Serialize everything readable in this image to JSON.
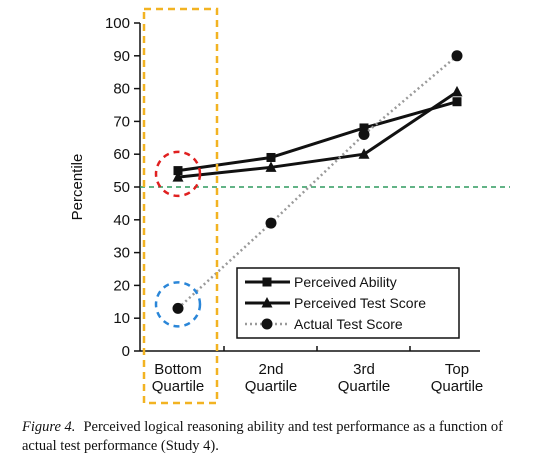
{
  "chart_data": {
    "type": "line",
    "categories": [
      "Bottom Quartile",
      "2nd Quartile",
      "3rd Quartile",
      "Top Quartile"
    ],
    "category_lines": [
      [
        "Bottom",
        "Quartile"
      ],
      [
        "2nd",
        "Quartile"
      ],
      [
        "3rd",
        "Quartile"
      ],
      [
        "Top",
        "Quartile"
      ]
    ],
    "ylabel": "Percentile",
    "ylim": [
      0,
      100
    ],
    "yticks": [
      0,
      10,
      20,
      30,
      40,
      50,
      60,
      70,
      80,
      90,
      100
    ],
    "series": [
      {
        "name": "Perceived Ability",
        "values": [
          55,
          59,
          68,
          76
        ],
        "marker": "square",
        "color": "#111111",
        "dash": "solid"
      },
      {
        "name": "Perceived Test Score",
        "values": [
          53,
          56,
          60,
          79
        ],
        "marker": "triangle",
        "color": "#111111",
        "dash": "solid"
      },
      {
        "name": "Actual Test Score",
        "values": [
          13,
          39,
          66,
          90
        ],
        "marker": "circle",
        "color": "#9a9a9a",
        "dash": "dotted"
      }
    ],
    "reference_line": {
      "y": 50,
      "color": "#2e9a5f",
      "style": "dashed"
    },
    "highlights": [
      {
        "type": "box",
        "around": "Bottom Quartile",
        "color": "#f2b322"
      },
      {
        "type": "circle",
        "around": "Perceived values at Bottom Quartile",
        "color": "#e02020"
      },
      {
        "type": "circle",
        "around": "Actual Test Score at Bottom Quartile",
        "color": "#2a86d8"
      }
    ],
    "legend_position": "bottom-right",
    "grid": false
  },
  "caption": {
    "label": "Figure 4.",
    "text": "Perceived logical reasoning ability and test performance as a function of actual test performance (Study 4)."
  }
}
